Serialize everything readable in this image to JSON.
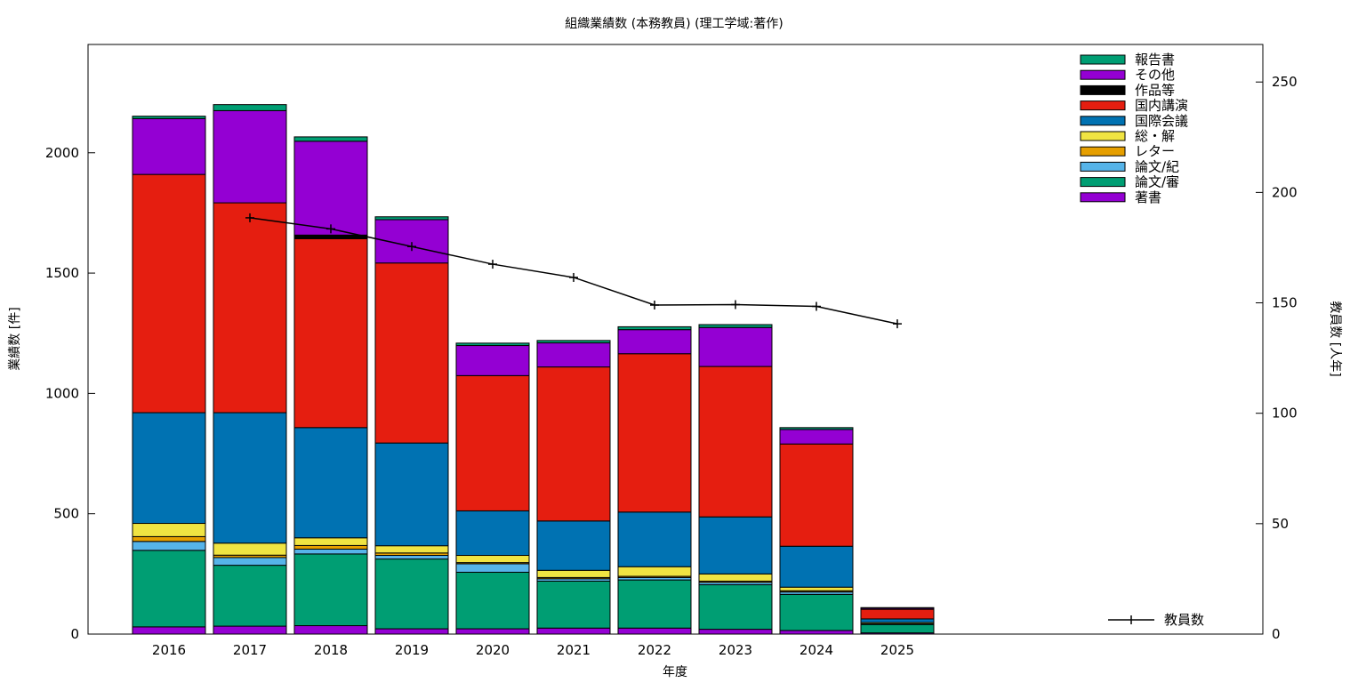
{
  "chart_data": {
    "type": "bar",
    "stacked": true,
    "title": "組織業績数 (本務教員) (理工学域:著作)",
    "xlabel": "年度",
    "ylabel": "業績数 [件]",
    "y2label": "教員数 [人年]",
    "ylim": [
      0,
      2450
    ],
    "y2lim": [
      0,
      267
    ],
    "yticks": [
      0,
      500,
      1000,
      1500,
      2000
    ],
    "y2ticks": [
      0,
      50,
      100,
      150,
      200,
      250
    ],
    "categories": [
      "2016",
      "2017",
      "2018",
      "2019",
      "2020",
      "2021",
      "2022",
      "2023",
      "2024",
      "2025"
    ],
    "series": [
      {
        "name": "著書",
        "color": "#9400d3",
        "values": [
          30,
          33,
          35,
          22,
          22,
          25,
          25,
          20,
          15,
          5
        ]
      },
      {
        "name": "論文/審",
        "color": "#009e73",
        "values": [
          318,
          253,
          298,
          290,
          235,
          195,
          200,
          185,
          150,
          35
        ]
      },
      {
        "name": "論文/紀",
        "color": "#56b4e9",
        "values": [
          37,
          32,
          20,
          15,
          35,
          10,
          10,
          10,
          10,
          3
        ]
      },
      {
        "name": "レター",
        "color": "#e69f00",
        "values": [
          20,
          10,
          15,
          10,
          5,
          5,
          5,
          5,
          5,
          0
        ]
      },
      {
        "name": "総・解",
        "color": "#f0e442",
        "values": [
          55,
          50,
          32,
          30,
          30,
          30,
          40,
          30,
          15,
          5
        ]
      },
      {
        "name": "国際会議",
        "color": "#0072b2",
        "values": [
          460,
          542,
          458,
          427,
          185,
          205,
          227,
          237,
          170,
          15
        ]
      },
      {
        "name": "国内講演",
        "color": "#e51e10",
        "values": [
          990,
          872,
          785,
          748,
          562,
          640,
          658,
          625,
          425,
          40
        ]
      },
      {
        "name": "作品等",
        "color": "#000000",
        "values": [
          0,
          0,
          15,
          0,
          0,
          0,
          0,
          0,
          0,
          0
        ]
      },
      {
        "name": "その他",
        "color": "#9400d3",
        "values": [
          232,
          383,
          390,
          180,
          125,
          100,
          100,
          162,
          60,
          5
        ]
      },
      {
        "name": "報告書",
        "color": "#009e73",
        "values": [
          10,
          25,
          18,
          12,
          10,
          10,
          12,
          12,
          8,
          2
        ]
      }
    ],
    "line": {
      "name": "教員数",
      "axis": "y2",
      "color": "#000000",
      "x": [
        "2017",
        "2018",
        "2019",
        "2020",
        "2021",
        "2022",
        "2023",
        "2024",
        "2025"
      ],
      "values": [
        188.5,
        183.5,
        175.5,
        167.5,
        161.5,
        149,
        149.2,
        148.4,
        140.5
      ]
    },
    "legend": "top-right",
    "grid": false
  }
}
